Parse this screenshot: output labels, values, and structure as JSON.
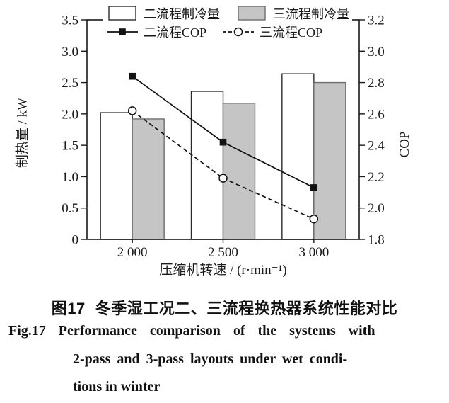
{
  "figure": {
    "caption_zh_label": "图17",
    "caption_zh_text": "冬季湿工况二、三流程换热器系统性能对比",
    "caption_en_lines": [
      "Fig.17  Performance comparison of the systems with",
      "2-pass and 3-pass layouts under wet condi-",
      "tions in winter"
    ]
  },
  "chart_data": {
    "type": "bar",
    "subtype": "grouped-bars-with-lines",
    "categories": [
      "2 000",
      "2 500",
      "3 000"
    ],
    "series": [
      {
        "name": "二流程制冷量",
        "type": "bar",
        "axis": "left",
        "values": [
          2.02,
          2.36,
          2.64
        ],
        "fill": "#ffffff",
        "stroke": "#2b2b2b"
      },
      {
        "name": "三流程制冷量",
        "type": "bar",
        "axis": "left",
        "values": [
          1.92,
          2.17,
          2.5
        ],
        "fill": "#c5c5c5",
        "stroke": "#6f6f6f"
      },
      {
        "name": "二流程COP",
        "type": "line",
        "axis": "right",
        "values": [
          2.84,
          2.42,
          2.13
        ],
        "line": "solid",
        "marker": "filled-square",
        "color": "#111111"
      },
      {
        "name": "三流程COP",
        "type": "line",
        "axis": "right",
        "values": [
          2.62,
          2.19,
          1.93
        ],
        "line": "dashed",
        "marker": "open-circle",
        "color": "#111111"
      }
    ],
    "left_axis": {
      "label": "制热量 / kW",
      "min": 0,
      "max": 3.5,
      "ticks": [
        "0",
        "0.5",
        "1.0",
        "1.5",
        "2.0",
        "2.5",
        "3.0",
        "3.5"
      ]
    },
    "right_axis": {
      "label": "COP",
      "min": 1.8,
      "max": 3.2,
      "ticks": [
        "1.8",
        "2.0",
        "2.2",
        "2.4",
        "2.6",
        "2.8",
        "3.0",
        "3.2"
      ]
    },
    "x_axis": {
      "label": "压缩机转速 / (r·min⁻¹)"
    },
    "grid": false,
    "legend_position": "top-inside",
    "axis_color": "#1a1a1a"
  }
}
